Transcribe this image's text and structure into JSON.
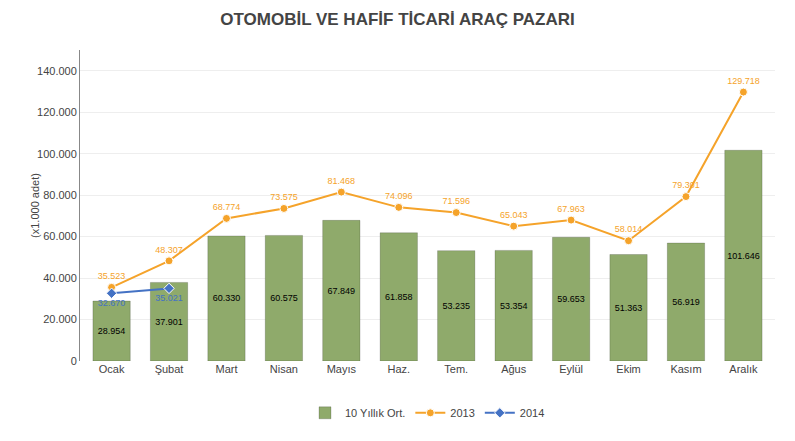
{
  "chart_data": {
    "type": "bar",
    "title": "OTOMOBİL VE HAFİF TİCARİ ARAÇ PAZARI",
    "y_label": "(x1.000 adet)",
    "categories": [
      "Ocak",
      "Şubat",
      "Mart",
      "Nisan",
      "Mayıs",
      "Haz.",
      "Tem.",
      "Ağus",
      "Eylül",
      "Ekim",
      "Kasım",
      "Aralık"
    ],
    "series": [
      {
        "name": "10 Yıllık Ort.",
        "type": "bar",
        "color": "#8faa6b",
        "values": [
          28954,
          37901,
          60330,
          60575,
          67849,
          61858,
          53235,
          53354,
          59653,
          51363,
          56919,
          101646
        ],
        "value_labels": [
          "28.954",
          "37.901",
          "60.330",
          "60.575",
          "67.849",
          "61.858",
          "53.235",
          "53.354",
          "59.653",
          "51.363",
          "56.919",
          "101.646"
        ]
      },
      {
        "name": "2013",
        "type": "line",
        "color": "#f5a32a",
        "marker": "circle",
        "values": [
          35523,
          48307,
          68774,
          73575,
          81468,
          74096,
          71596,
          65043,
          67963,
          58014,
          79301,
          129718
        ],
        "value_labels": [
          "35.523",
          "48.307",
          "68.774",
          "73.575",
          "81.468",
          "74.096",
          "71.596",
          "65.043",
          "67.963",
          "58.014",
          "79.301",
          "129.718"
        ]
      },
      {
        "name": "2014",
        "type": "line",
        "color": "#4472c4",
        "marker": "diamond",
        "values": [
          32670,
          35021,
          null,
          null,
          null,
          null,
          null,
          null,
          null,
          null,
          null,
          null
        ],
        "value_labels": [
          "32.670",
          "35.021",
          null,
          null,
          null,
          null,
          null,
          null,
          null,
          null,
          null,
          null
        ]
      }
    ],
    "ylim": [
      0,
      150000
    ],
    "yticks": [
      0,
      {
        "value": 20000,
        "label": "20.000"
      },
      {
        "value": 40000,
        "label": "40.000"
      },
      {
        "value": 60000,
        "label": "60.000"
      },
      {
        "value": 80000,
        "label": "80.000"
      },
      {
        "value": 100000,
        "label": "100.000"
      },
      {
        "value": 120000,
        "label": "120.000"
      },
      {
        "value": 140000,
        "label": "140.000"
      }
    ],
    "grid": true,
    "data_labels": true,
    "legend": "bottom"
  }
}
